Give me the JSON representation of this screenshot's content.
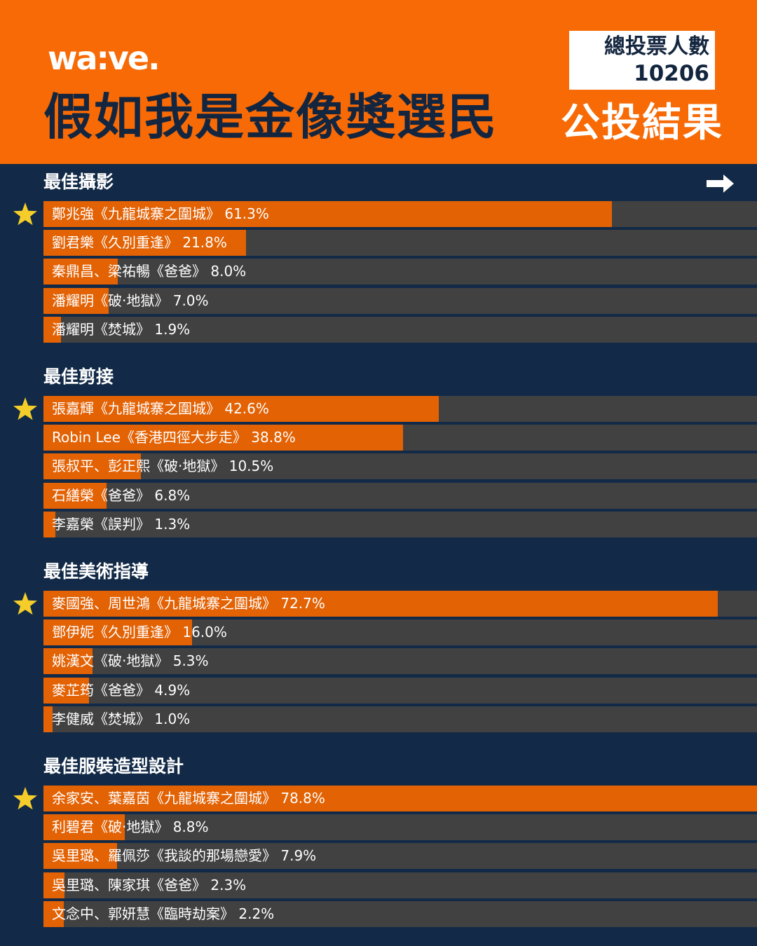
{
  "header": {
    "logo": "wa:ve.",
    "title": "假如我是金像獎選民",
    "total_votes_label": "總投票人數",
    "total_votes_value": "10206",
    "result_label": "公投結果"
  },
  "colors": {
    "header_bg": "#f76a06",
    "page_bg": "#122a47",
    "bar_fill": "#e36204",
    "bar_track": "#414141",
    "star": "#f4cd2a"
  },
  "icons": {
    "next": "arrow-right-icon",
    "winner": "star-icon"
  },
  "chart_data": [
    {
      "type": "bar",
      "title": "最佳攝影",
      "categories": [
        "鄭兆強《九龍城寨之圍城》",
        "劉君樂《久別重逢》",
        "秦鼎昌、梁祐暢《爸爸》",
        "潘耀明《破·地獄》",
        "潘耀明《焚城》"
      ],
      "values": [
        61.3,
        21.8,
        8.0,
        7.0,
        1.9
      ],
      "labels": [
        "鄭兆強《九龍城寨之圍城》 61.3%",
        "劉君樂《久別重逢》 21.8%",
        "秦鼎昌、梁祐暢《爸爸》 8.0%",
        "潘耀明《破·地獄》 7.0%",
        "潘耀明《焚城》 1.9%"
      ],
      "winner_index": 0,
      "unit": "%"
    },
    {
      "type": "bar",
      "title": "最佳剪接",
      "categories": [
        "張嘉輝《九龍城寨之圍城》",
        "Robin Lee《香港四徑大步走》",
        "張叔平、彭正熙《破·地獄》",
        "石繕榮《爸爸》",
        "李嘉榮《誤判》"
      ],
      "values": [
        42.6,
        38.8,
        10.5,
        6.8,
        1.3
      ],
      "labels": [
        "張嘉輝《九龍城寨之圍城》 42.6%",
        "Robin Lee《香港四徑大步走》 38.8%",
        "張叔平、彭正熙《破·地獄》 10.5%",
        "石繕榮《爸爸》 6.8%",
        "李嘉榮《誤判》 1.3%"
      ],
      "winner_index": 0,
      "unit": "%"
    },
    {
      "type": "bar",
      "title": "最佳美術指導",
      "categories": [
        "麥國強、周世鴻《九龍城寨之圍城》",
        "鄧伊妮《久別重逢》",
        "姚漢文《破·地獄》",
        "麥芷筠《爸爸》",
        "李健威《焚城》"
      ],
      "values": [
        72.7,
        16.0,
        5.3,
        4.9,
        1.0
      ],
      "labels": [
        "麥國強、周世鴻《九龍城寨之圍城》 72.7%",
        "鄧伊妮《久別重逢》 16.0%",
        "姚漢文《破·地獄》 5.3%",
        "麥芷筠《爸爸》 4.9%",
        "李健威《焚城》 1.0%"
      ],
      "winner_index": 0,
      "unit": "%"
    },
    {
      "type": "bar",
      "title": "最佳服裝造型設計",
      "categories": [
        "余家安、葉嘉茵《九龍城寨之圍城》",
        "利碧君《破·地獄》",
        "吳里璐、羅佩莎《我談的那場戀愛》",
        "吳里璐、陳家琪《爸爸》",
        "文念中、郭妍慧《臨時劫案》"
      ],
      "values": [
        78.8,
        8.8,
        7.9,
        2.3,
        2.2
      ],
      "labels": [
        "余家安、葉嘉茵《九龍城寨之圍城》 78.8%",
        "利碧君《破·地獄》 8.8%",
        "吳里璐、羅佩莎《我談的那場戀愛》 7.9%",
        "吳里璐、陳家琪《爸爸》 2.3%",
        "文念中、郭妍慧《臨時劫案》 2.2%"
      ],
      "winner_index": 0,
      "unit": "%"
    }
  ]
}
